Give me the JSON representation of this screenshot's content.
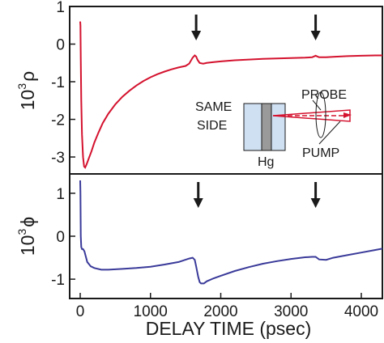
{
  "chart_data": [
    {
      "type": "line",
      "xlim": [
        -150,
        4300
      ],
      "ylim": [
        -3.45,
        1.0
      ],
      "yticks": [
        {
          "v": 1,
          "label": "1"
        },
        {
          "v": 0,
          "label": "0"
        },
        {
          "v": -1,
          "label": "-1"
        },
        {
          "v": -2,
          "label": "-2"
        },
        {
          "v": -3,
          "label": "-3"
        }
      ],
      "ylabel_base": "10",
      "ylabel_exp": "3",
      "ylabel_symbol": "ρ",
      "line_color": "#d4122e",
      "series": [
        {
          "x": [
            0,
            3,
            8,
            15,
            25,
            40,
            55,
            70,
            90,
            120,
            160,
            200,
            260,
            320,
            400,
            500,
            600,
            700,
            800,
            900,
            1000,
            1100,
            1200,
            1300,
            1400,
            1500,
            1550,
            1600,
            1630,
            1650,
            1670,
            1700,
            1750,
            1800,
            1900,
            2000,
            2200,
            2400,
            2600,
            2800,
            3000,
            3200,
            3300,
            3350,
            3400,
            3500,
            3600,
            3800,
            4000,
            4200,
            4300
          ],
          "y": [
            0.6,
            0.5,
            -0.4,
            -1.5,
            -2.4,
            -3.0,
            -3.25,
            -3.28,
            -3.2,
            -3.05,
            -2.85,
            -2.62,
            -2.35,
            -2.1,
            -1.85,
            -1.6,
            -1.4,
            -1.24,
            -1.1,
            -0.98,
            -0.88,
            -0.8,
            -0.73,
            -0.67,
            -0.62,
            -0.58,
            -0.52,
            -0.36,
            -0.3,
            -0.33,
            -0.42,
            -0.5,
            -0.52,
            -0.5,
            -0.48,
            -0.46,
            -0.43,
            -0.41,
            -0.39,
            -0.38,
            -0.37,
            -0.36,
            -0.35,
            -0.31,
            -0.35,
            -0.35,
            -0.34,
            -0.32,
            -0.31,
            -0.3,
            -0.3
          ]
        }
      ],
      "arrows_x": [
        1650,
        3350
      ],
      "inset": {
        "label_left_line1": "SAME",
        "label_left_line2": "SIDE",
        "label_bottom": "Hg",
        "label_probe": "PROBE",
        "label_pump": "PUMP"
      }
    },
    {
      "type": "line",
      "xlim": [
        -150,
        4300
      ],
      "ylim": [
        -1.45,
        1.45
      ],
      "yticks": [
        {
          "v": 1,
          "label": "1"
        },
        {
          "v": 0,
          "label": "0"
        },
        {
          "v": -1,
          "label": "-1"
        }
      ],
      "xticks": [
        {
          "v": 0,
          "label": "0"
        },
        {
          "v": 1000,
          "label": "1000"
        },
        {
          "v": 2000,
          "label": "2000"
        },
        {
          "v": 3000,
          "label": "3000"
        },
        {
          "v": 4000,
          "label": "4000"
        }
      ],
      "xlabel": "DELAY TIME (psec)",
      "ylabel_base": "10",
      "ylabel_exp": "3",
      "ylabel_symbol": "ϕ",
      "line_color": "#3a3a9a",
      "series": [
        {
          "x": [
            0,
            3,
            8,
            15,
            25,
            40,
            60,
            100,
            150,
            200,
            300,
            400,
            500,
            600,
            800,
            1000,
            1200,
            1400,
            1550,
            1600,
            1630,
            1650,
            1680,
            1700,
            1720,
            1760,
            1800,
            1900,
            2000,
            2200,
            2400,
            2600,
            2800,
            3000,
            3200,
            3300,
            3350,
            3400,
            3500,
            3600,
            3800,
            4000,
            4200,
            4300
          ],
          "y": [
            1.3,
            1.0,
            0.0,
            -0.25,
            -0.3,
            -0.3,
            -0.35,
            -0.6,
            -0.7,
            -0.74,
            -0.78,
            -0.78,
            -0.77,
            -0.76,
            -0.74,
            -0.71,
            -0.66,
            -0.6,
            -0.52,
            -0.5,
            -0.55,
            -0.7,
            -0.95,
            -1.07,
            -1.1,
            -1.1,
            -1.05,
            -0.98,
            -0.92,
            -0.81,
            -0.72,
            -0.64,
            -0.58,
            -0.53,
            -0.49,
            -0.48,
            -0.48,
            -0.54,
            -0.55,
            -0.5,
            -0.44,
            -0.38,
            -0.32,
            -0.29
          ]
        }
      ],
      "arrows_x": [
        1680,
        3350
      ]
    }
  ]
}
